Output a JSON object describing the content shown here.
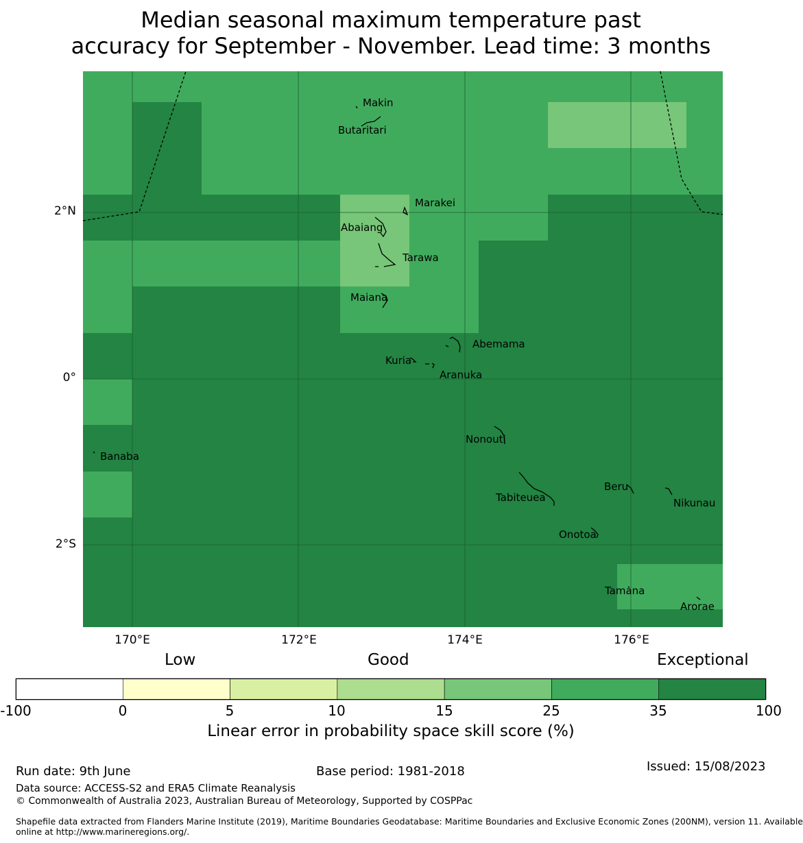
{
  "title": {
    "line1": "Median seasonal maximum temperature past",
    "line2": "accuracy for September - November. Lead time: 3 months"
  },
  "map": {
    "y_axis": [
      "2°N",
      "0°",
      "2°S"
    ],
    "x_axis": [
      "170°E",
      "172°E",
      "174°E",
      "176°E"
    ],
    "places": [
      "Makin",
      "Butaritari",
      "Marakei",
      "Abaiang",
      "Tarawa",
      "Maiana",
      "Abemama",
      "Kuria",
      "Aranuka",
      "Nonouti",
      "Banaba",
      "Beru",
      "Tabiteuea",
      "Nikunau",
      "Onotoa",
      "Tamana",
      "Arorae"
    ],
    "colors": {
      "exceptional": "#238443",
      "very_good": "#41ab5d",
      "good": "#78c679",
      "fair": "#addd8e",
      "low": "#d9f0a3",
      "very_low": "#ffffcc",
      "none": "#ffffff"
    }
  },
  "legend": {
    "categories": [
      "Low",
      "Good",
      "Exceptional"
    ],
    "ticks": [
      "-100",
      "0",
      "5",
      "10",
      "15",
      "25",
      "35",
      "100"
    ],
    "colors": [
      "#ffffff",
      "#ffffcc",
      "#d9f0a3",
      "#addd8e",
      "#78c679",
      "#41ab5d",
      "#238443"
    ],
    "label": "Linear error in probability space skill score (%)"
  },
  "footer": {
    "run_date": "Run date: 9th June",
    "base_period": "Base period: 1981-2018",
    "issued": "Issued: 15/08/2023",
    "data_source": "Data source: ACCESS-S2 and ERA5 Climate Reanalysis",
    "copyright": "© Commonwealth of Australia 2023, Australian Bureau of Meteorology, Supported by COSPPac",
    "shapefile_line1": "Shapefile data extracted from Flanders Marine Institute (2019), Maritime Boundaries Geodatabase: Maritime Boundaries and Exclusive Economic Zones (200NM), version 11. Available",
    "shapefile_line2": "online at http://www.marineregions.org/."
  }
}
